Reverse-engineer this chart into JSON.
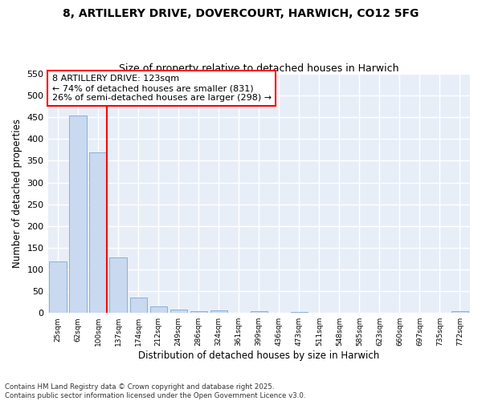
{
  "title1": "8, ARTILLERY DRIVE, DOVERCOURT, HARWICH, CO12 5FG",
  "title2": "Size of property relative to detached houses in Harwich",
  "xlabel": "Distribution of detached houses by size in Harwich",
  "ylabel": "Number of detached properties",
  "categories": [
    "25sqm",
    "62sqm",
    "100sqm",
    "137sqm",
    "174sqm",
    "212sqm",
    "249sqm",
    "286sqm",
    "324sqm",
    "361sqm",
    "399sqm",
    "436sqm",
    "473sqm",
    "511sqm",
    "548sqm",
    "585sqm",
    "623sqm",
    "660sqm",
    "697sqm",
    "735sqm",
    "772sqm"
  ],
  "values": [
    118,
    455,
    370,
    128,
    35,
    15,
    8,
    4,
    5,
    0,
    4,
    0,
    3,
    0,
    0,
    0,
    0,
    0,
    0,
    0,
    4
  ],
  "bar_color": "#c8d9f0",
  "bar_edge_color": "#8ab0d8",
  "vline_color": "red",
  "annotation_title": "8 ARTILLERY DRIVE: 123sqm",
  "annotation_line1": "← 74% of detached houses are smaller (831)",
  "annotation_line2": "26% of semi-detached houses are larger (298) →",
  "annotation_box_color": "white",
  "annotation_box_edge": "red",
  "ylim": [
    0,
    550
  ],
  "yticks": [
    0,
    50,
    100,
    150,
    200,
    250,
    300,
    350,
    400,
    450,
    500,
    550
  ],
  "footer1": "Contains HM Land Registry data © Crown copyright and database right 2025.",
  "footer2": "Contains public sector information licensed under the Open Government Licence v3.0.",
  "bg_color": "#ffffff",
  "plot_bg_color": "#e8eef8",
  "grid_color": "#ffffff",
  "title1_fontsize": 10,
  "title2_fontsize": 9
}
